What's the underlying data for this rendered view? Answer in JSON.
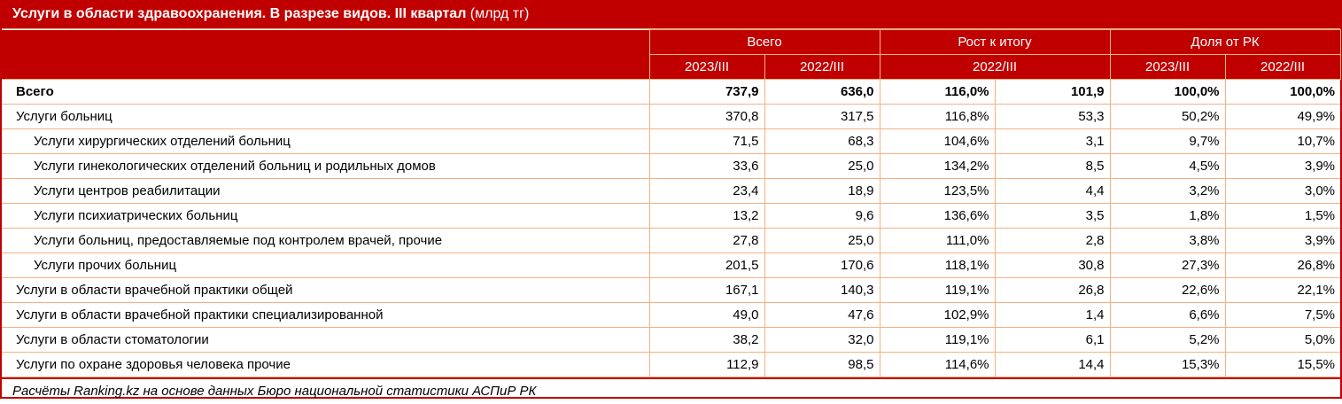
{
  "title": {
    "bold": "Услуги в области здравоохранения. В разрезе видов. III квартал",
    "unit": " (млрд тг)"
  },
  "header": {
    "groups": [
      "Всего",
      "Рост к итогу",
      "Доля от РК"
    ],
    "sub": [
      "2023/III",
      "2022/III",
      "2022/III",
      "2023/III",
      "2022/III"
    ]
  },
  "rows": [
    {
      "label": "Всего",
      "v": [
        "737,9",
        "636,0",
        "116,0%",
        "101,9",
        "100,0%",
        "100,0%"
      ]
    },
    {
      "label": "Услуги больниц",
      "v": [
        "370,8",
        "317,5",
        "116,8%",
        "53,3",
        "50,2%",
        "49,9%"
      ]
    },
    {
      "label": "Услуги хирургических отделений больниц",
      "v": [
        "71,5",
        "68,3",
        "104,6%",
        "3,1",
        "9,7%",
        "10,7%"
      ]
    },
    {
      "label": "Услуги гинекологических отделений больниц и родильных домов",
      "v": [
        "33,6",
        "25,0",
        "134,2%",
        "8,5",
        "4,5%",
        "3,9%"
      ]
    },
    {
      "label": "Услуги центров реабилитации",
      "v": [
        "23,4",
        "18,9",
        "123,5%",
        "4,4",
        "3,2%",
        "3,0%"
      ]
    },
    {
      "label": "Услуги психиатрических больниц",
      "v": [
        "13,2",
        "9,6",
        "136,6%",
        "3,5",
        "1,8%",
        "1,5%"
      ]
    },
    {
      "label": "Услуги больниц, предоставляемые под контролем врачей, прочие",
      "v": [
        "27,8",
        "25,0",
        "111,0%",
        "2,8",
        "3,8%",
        "3,9%"
      ]
    },
    {
      "label": "Услуги прочих больниц",
      "v": [
        "201,5",
        "170,6",
        "118,1%",
        "30,8",
        "27,3%",
        "26,8%"
      ]
    },
    {
      "label": "Услуги в области врачебной практики общей",
      "v": [
        "167,1",
        "140,3",
        "119,1%",
        "26,8",
        "22,6%",
        "22,1%"
      ]
    },
    {
      "label": "Услуги в области врачебной практики специализированной",
      "v": [
        "49,0",
        "47,6",
        "102,9%",
        "1,4",
        "6,6%",
        "7,5%"
      ]
    },
    {
      "label": "Услуги в области стоматологии",
      "v": [
        "38,2",
        "32,0",
        "119,1%",
        "6,1",
        "5,2%",
        "5,0%"
      ]
    },
    {
      "label": "Услуги по охране здоровья человека прочие",
      "v": [
        "112,9",
        "98,5",
        "114,6%",
        "14,4",
        "15,3%",
        "15,5%"
      ]
    }
  ],
  "source": "Расчёты Ranking.kz на основе данных Бюро национальной статистики АСПиР РК",
  "colors": {
    "header_bg": "#c00000",
    "grid": "#f4b183",
    "text": "#000000"
  }
}
